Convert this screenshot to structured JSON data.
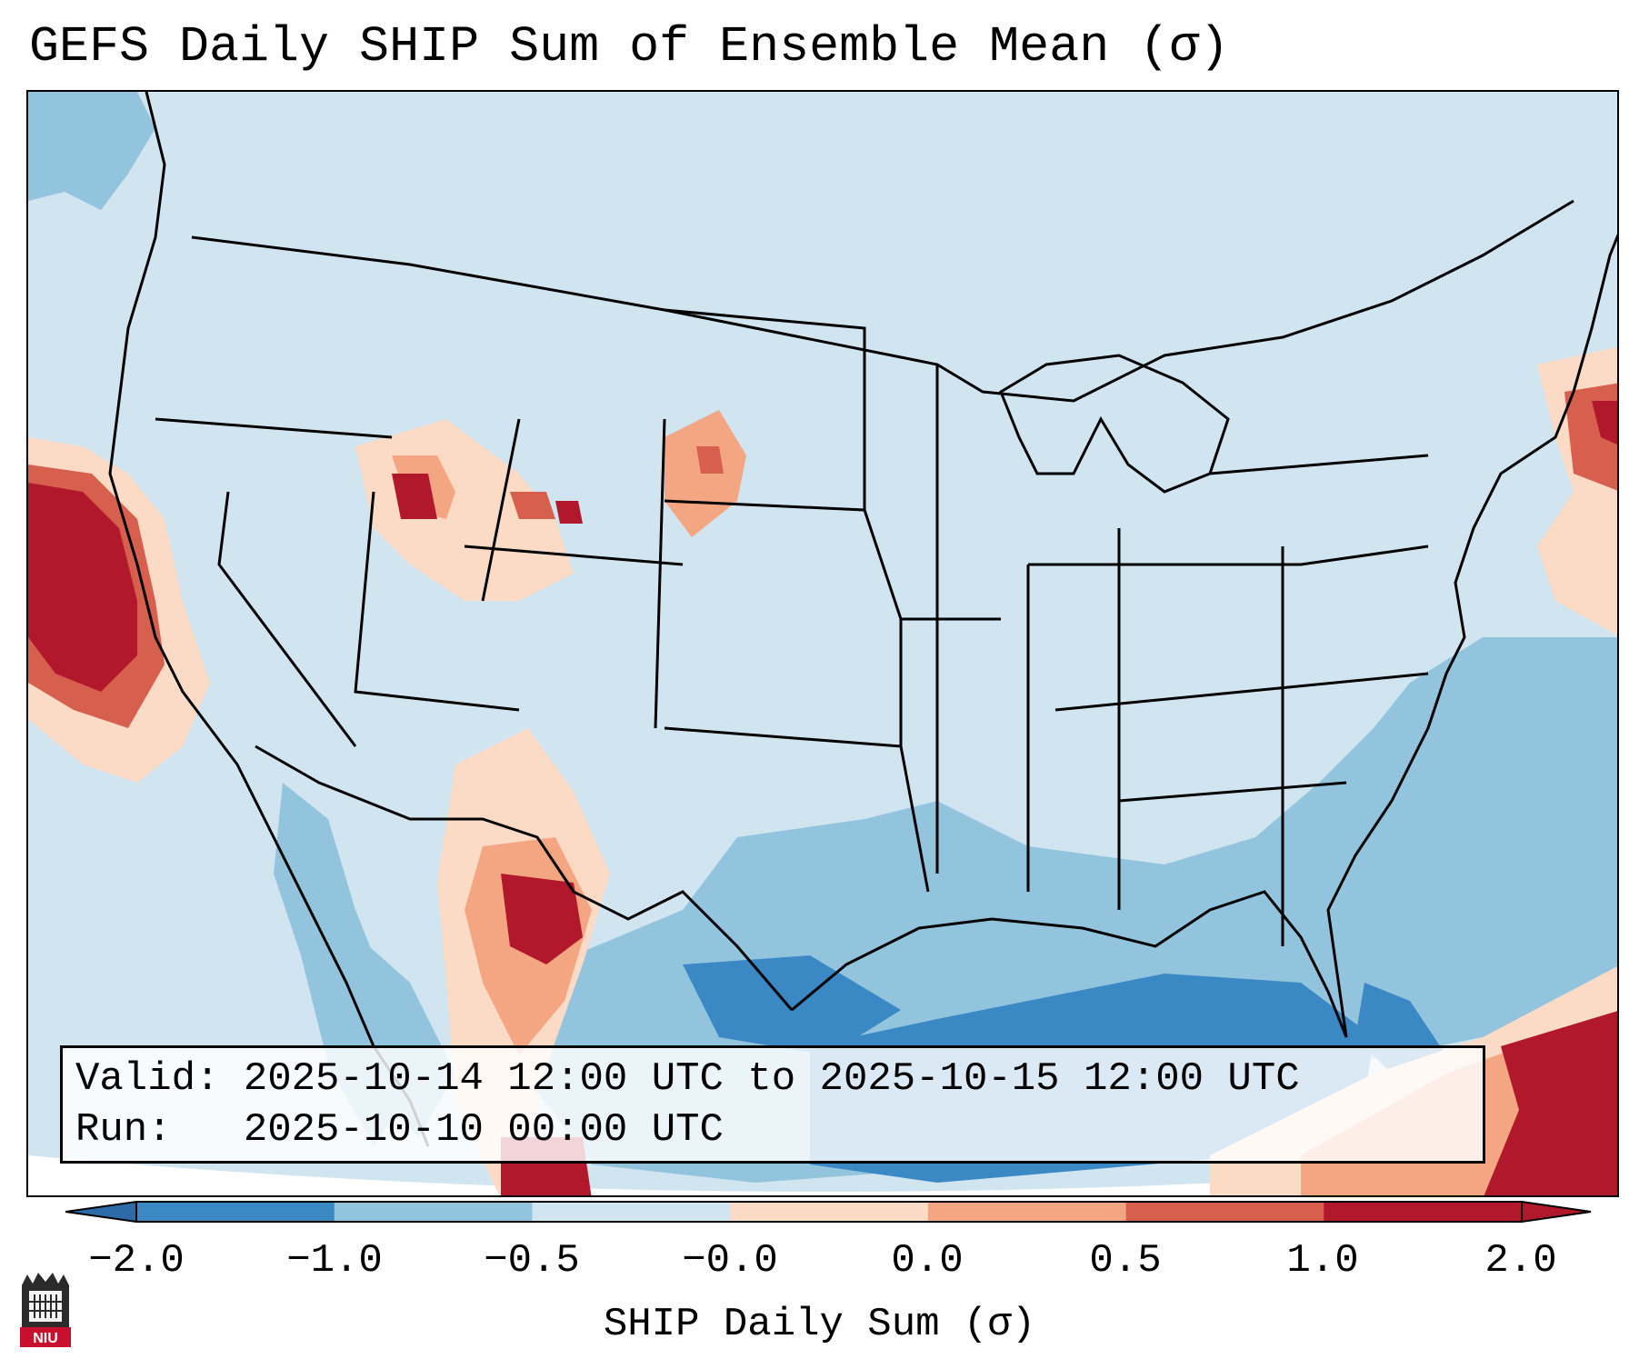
{
  "title": "GEFS Daily SHIP Sum of Ensemble Mean (σ)",
  "info": {
    "valid_label": "Valid:",
    "valid_value": "2025-10-14 12:00 UTC to 2025-10-15 12:00 UTC",
    "run_label": "Run:",
    "run_value": "2025-10-10 00:00 UTC"
  },
  "colorbar": {
    "label": "SHIP Daily Sum (σ)",
    "ticks": [
      "−2.0",
      "−1.0",
      "−0.5",
      "−0.0",
      "0.0",
      "0.5",
      "1.0",
      "2.0"
    ],
    "colors": [
      "#3a88c4",
      "#92c4de",
      "#d1e5f0",
      "#fbdbc6",
      "#f4a582",
      "#d6604d",
      "#b2182b"
    ],
    "under_color": "#2c6aa8",
    "over_color": "#b2182b"
  },
  "logo": {
    "text": "NIU"
  },
  "map": {
    "projection": "lambert-conformal",
    "region": "CONUS",
    "anomaly_areas": [
      {
        "name": "Pacific coast (N. California)",
        "level": "2.0"
      },
      {
        "name": "New England coast",
        "level": "2.0"
      },
      {
        "name": "New Mexico / Texas border",
        "level": "2.0"
      },
      {
        "name": "Caribbean / Bahamas",
        "level": "2.0"
      },
      {
        "name": "Wyoming / Idaho / Utah",
        "level": "1.0"
      },
      {
        "name": "South Dakota",
        "level": "0.5"
      },
      {
        "name": "Gulf of Mexico",
        "level": "-1.0"
      },
      {
        "name": "Western Atlantic",
        "level": "-0.5"
      }
    ]
  }
}
